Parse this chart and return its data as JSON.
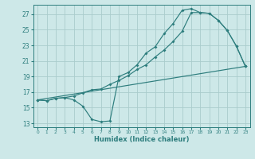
{
  "xlabel": "Humidex (Indice chaleur)",
  "bg_color": "#cde8e8",
  "line_color": "#2d7d7d",
  "grid_color": "#b0d8d8",
  "xlim": [
    -0.5,
    23.5
  ],
  "ylim": [
    12.5,
    28.2
  ],
  "xticks": [
    0,
    1,
    2,
    3,
    4,
    5,
    6,
    7,
    8,
    9,
    10,
    11,
    12,
    13,
    14,
    15,
    16,
    17,
    18,
    19,
    20,
    21,
    22,
    23
  ],
  "yticks": [
    13,
    15,
    17,
    19,
    21,
    23,
    25,
    27
  ],
  "line1_x": [
    0,
    1,
    2,
    3,
    4,
    5,
    6,
    7,
    8,
    9,
    10,
    11,
    12,
    13,
    14,
    15,
    16,
    17,
    18,
    19,
    20,
    21,
    22,
    23
  ],
  "line1_y": [
    16.0,
    15.9,
    16.2,
    16.3,
    16.0,
    15.2,
    13.5,
    13.2,
    13.3,
    19.0,
    19.5,
    20.5,
    22.0,
    22.8,
    24.5,
    25.8,
    27.5,
    27.7,
    27.2,
    27.1,
    26.2,
    24.9,
    22.9,
    20.3
  ],
  "line2_x": [
    0,
    1,
    2,
    3,
    4,
    5,
    6,
    7,
    8,
    9,
    10,
    11,
    12,
    13,
    14,
    15,
    16,
    17,
    18,
    19,
    20,
    21,
    22,
    23
  ],
  "line2_y": [
    16.0,
    15.9,
    16.2,
    16.3,
    16.5,
    16.9,
    17.3,
    17.4,
    18.0,
    18.5,
    19.1,
    19.9,
    20.5,
    21.5,
    22.4,
    23.5,
    24.8,
    27.2,
    27.2,
    27.1,
    26.2,
    24.9,
    22.9,
    20.3
  ],
  "line3_x": [
    0,
    23
  ],
  "line3_y": [
    16.0,
    20.3
  ]
}
